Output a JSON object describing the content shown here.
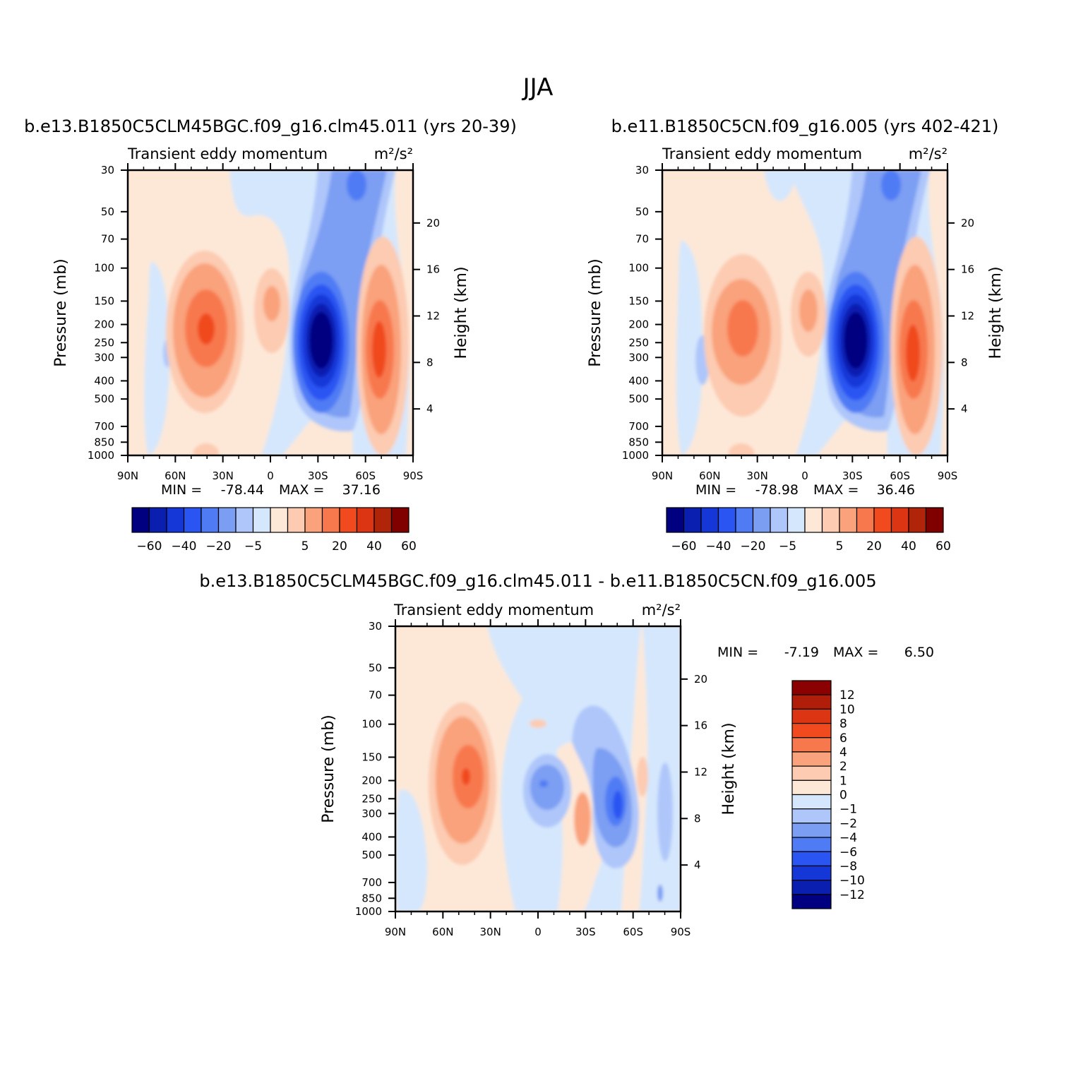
{
  "figure": {
    "title": "JJA"
  },
  "panels": [
    {
      "case_title": "b.e13.B1850C5CLM45BGC.f09_g16.clm45.011 (yrs 20-39)",
      "left_label": "Transient eddy momentum",
      "units": "m²/s²",
      "stats": {
        "min_label": "MIN =",
        "min_value": "-78.44",
        "max_label": "MAX =",
        "max_value": "37.16"
      }
    },
    {
      "case_title": "b.e11.B1850C5CN.f09_g16.005 (yrs 402-421)",
      "left_label": "Transient eddy momentum",
      "units": "m²/s²",
      "stats": {
        "min_label": "MIN =",
        "min_value": "-78.98",
        "max_label": "MAX =",
        "max_value": "36.46"
      }
    },
    {
      "case_title": "b.e13.B1850C5CLM45BGC.f09_g16.clm45.011 - b.e11.B1850C5CN.f09_g16.005",
      "left_label": "Transient eddy momentum",
      "units": "m²/s²",
      "stats": {
        "min_label": "MIN =",
        "min_value": "-7.19",
        "max_label": "MAX =",
        "max_value": "6.50"
      }
    }
  ],
  "chart_data": [
    {
      "type": "heatmap",
      "title": "Transient eddy momentum",
      "units": "m²/s²",
      "xlabel": "",
      "ylabel": "Pressure (mb)",
      "ylabel_right": "Height (km)",
      "x_ticks": [
        "90N",
        "60N",
        "30N",
        "0",
        "30S",
        "60S",
        "90S"
      ],
      "x_range": [
        90,
        -90
      ],
      "y_ticks": [
        30,
        50,
        70,
        100,
        150,
        200,
        250,
        300,
        400,
        500,
        700,
        850,
        1000
      ],
      "y_range": [
        1000,
        30
      ],
      "y_scale": "log",
      "y_right_ticks": [
        4,
        8,
        12,
        16,
        20
      ],
      "colorbar": {
        "orientation": "horizontal",
        "labels": [
          "-60",
          "-40",
          "-20",
          "-5",
          "5",
          "20",
          "40",
          "60"
        ],
        "colors": [
          "#000080",
          "#0a1fb0",
          "#1537d8",
          "#2a55f2",
          "#4f7bf5",
          "#7b9ef3",
          "#aec6fa",
          "#d5e7fd",
          "#fde8d8",
          "#fccbb1",
          "#f9a27b",
          "#f8784e",
          "#f04a1e",
          "#dc3513",
          "#b0250a",
          "#800000"
        ]
      },
      "min": -78.44,
      "max": 37.16,
      "features": [
        {
          "lat": -40,
          "p": 250,
          "value": -78.44,
          "sign": "negative",
          "note": "jet core"
        },
        {
          "lat": 40,
          "p": 200,
          "value": 30,
          "sign": "positive"
        },
        {
          "lat": -72,
          "p": 300,
          "value": 37.16,
          "sign": "positive"
        },
        {
          "lat": 5,
          "p": 150,
          "value": 12,
          "sign": "positive"
        }
      ]
    },
    {
      "type": "heatmap",
      "title": "Transient eddy momentum",
      "units": "m²/s²",
      "xlabel": "",
      "ylabel": "Pressure (mb)",
      "ylabel_right": "Height (km)",
      "x_ticks": [
        "90N",
        "60N",
        "30N",
        "0",
        "30S",
        "60S",
        "90S"
      ],
      "x_range": [
        90,
        -90
      ],
      "y_ticks": [
        30,
        50,
        70,
        100,
        150,
        200,
        250,
        300,
        400,
        500,
        700,
        850,
        1000
      ],
      "y_range": [
        1000,
        30
      ],
      "y_scale": "log",
      "y_right_ticks": [
        4,
        8,
        12,
        16,
        20
      ],
      "colorbar": {
        "orientation": "horizontal",
        "labels": [
          "-60",
          "-40",
          "-20",
          "-5",
          "5",
          "20",
          "40",
          "60"
        ],
        "colors": [
          "#000080",
          "#0a1fb0",
          "#1537d8",
          "#2a55f2",
          "#4f7bf5",
          "#7b9ef3",
          "#aec6fa",
          "#d5e7fd",
          "#fde8d8",
          "#fccbb1",
          "#f9a27b",
          "#f8784e",
          "#f04a1e",
          "#dc3513",
          "#b0250a",
          "#800000"
        ]
      },
      "min": -78.98,
      "max": 36.46,
      "features": [
        {
          "lat": -40,
          "p": 250,
          "value": -78.98,
          "sign": "negative",
          "note": "jet core"
        },
        {
          "lat": 40,
          "p": 200,
          "value": 28,
          "sign": "positive"
        },
        {
          "lat": -72,
          "p": 300,
          "value": 36.46,
          "sign": "positive"
        },
        {
          "lat": 5,
          "p": 150,
          "value": 12,
          "sign": "positive"
        }
      ]
    },
    {
      "type": "heatmap",
      "title": "Transient eddy momentum",
      "units": "m²/s²",
      "xlabel": "",
      "ylabel": "Pressure (mb)",
      "ylabel_right": "Height (km)",
      "x_ticks": [
        "90N",
        "60N",
        "30N",
        "0",
        "30S",
        "60S",
        "90S"
      ],
      "x_range": [
        90,
        -90
      ],
      "y_ticks": [
        30,
        50,
        70,
        100,
        150,
        200,
        250,
        300,
        400,
        500,
        700,
        850,
        1000
      ],
      "y_range": [
        1000,
        30
      ],
      "y_scale": "log",
      "y_right_ticks": [
        4,
        8,
        12,
        16,
        20
      ],
      "colorbar": {
        "orientation": "vertical",
        "labels": [
          "12",
          "10",
          "8",
          "6",
          "4",
          "2",
          "1",
          "0",
          "-1",
          "-2",
          "-4",
          "-6",
          "-8",
          "-10",
          "-12"
        ],
        "colors": [
          "#8b0000",
          "#b01e0a",
          "#dc3513",
          "#f04a1e",
          "#f8784e",
          "#f9a27b",
          "#fccbb1",
          "#fde8d8",
          "#d5e7fd",
          "#aec6fa",
          "#7b9ef3",
          "#4f7bf5",
          "#2a55f2",
          "#1537d8",
          "#0a1fb0",
          "#000080"
        ]
      },
      "min": -7.19,
      "max": 6.5,
      "features": [
        {
          "lat": 42,
          "p": 200,
          "value": 6.5,
          "sign": "positive"
        },
        {
          "lat": -50,
          "p": 250,
          "value": -7.19,
          "sign": "negative"
        },
        {
          "lat": -2,
          "p": 200,
          "value": -4,
          "sign": "negative"
        }
      ]
    }
  ]
}
